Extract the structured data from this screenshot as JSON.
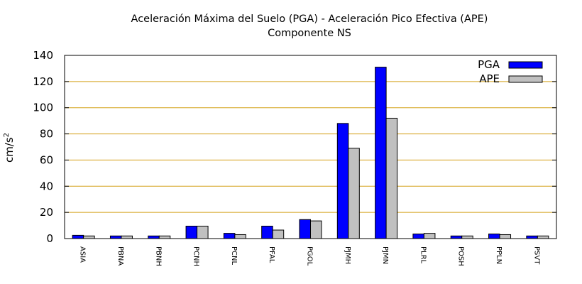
{
  "chart_data": {
    "type": "bar",
    "title": "Aceleración Máxima del Suelo (PGA) -  Aceleración Pico Efectiva (APE)",
    "subtitle": "Componente NS",
    "ylabel": "cm/s",
    "ylabel_superscript": "2",
    "xlabel": "",
    "ylim": [
      0,
      140
    ],
    "yticks": [
      0,
      20,
      40,
      60,
      80,
      100,
      120,
      140
    ],
    "grid": true,
    "legend_position": "top-right",
    "categories": [
      "ASIA",
      "PBNA",
      "PBNH",
      "PCNH",
      "PCNL",
      "PFAL",
      "PGOL",
      "PJMH",
      "PJMN",
      "PLRL",
      "POSH",
      "PPLN",
      "PSVT"
    ],
    "series": [
      {
        "name": "PGA",
        "color": "#0000ff",
        "values": [
          2.5,
          2,
          2,
          9.5,
          4,
          9.5,
          14.5,
          88,
          131,
          3.5,
          2,
          3.5,
          2
        ]
      },
      {
        "name": "APE",
        "color": "#c0c0c0",
        "values": [
          2,
          2,
          2,
          9.5,
          3,
          6.5,
          13.5,
          69,
          92,
          4,
          2,
          3,
          2
        ]
      }
    ],
    "colors": {
      "grid": "#d4a017",
      "axis": "#000000"
    }
  }
}
